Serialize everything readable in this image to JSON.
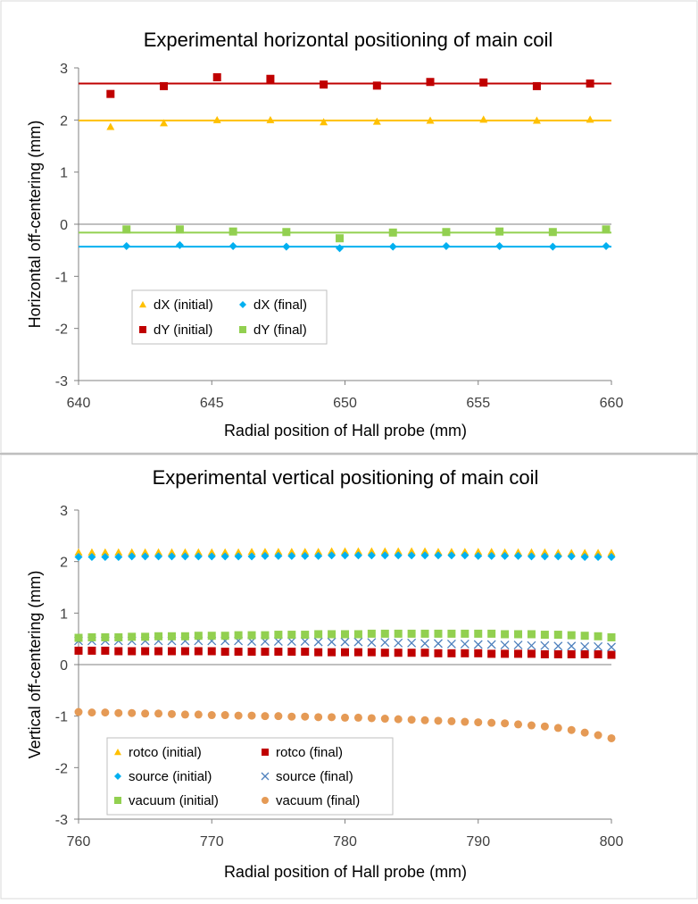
{
  "chart_data": [
    {
      "type": "scatter",
      "title": "Experimental horizontal positioning of main coil",
      "xlabel": "Radial position of Hall probe (mm)",
      "ylabel": "Horizontal off-centering (mm)",
      "xlim": [
        640,
        660
      ],
      "ylim": [
        -3,
        3
      ],
      "xticks": [
        640,
        645,
        650,
        655,
        660
      ],
      "yticks": [
        3,
        2,
        1,
        0,
        -1,
        -2,
        -3
      ],
      "legend_position": "bottom-left",
      "series": [
        {
          "name": "dX (initial)",
          "marker": "triangle",
          "color": "#ffc000",
          "x": [
            641.2,
            643.2,
            645.2,
            647.2,
            649.2,
            651.2,
            653.2,
            655.2,
            657.2,
            659.2
          ],
          "y": [
            1.87,
            1.94,
            2.0,
            2.0,
            1.96,
            1.97,
            1.99,
            2.01,
            1.99,
            2.01
          ],
          "fit": 1.99
        },
        {
          "name": "dX (final)",
          "marker": "diamond",
          "color": "#00b0f0",
          "x": [
            641.8,
            643.8,
            645.8,
            647.8,
            649.8,
            651.8,
            653.8,
            655.8,
            657.8,
            659.8
          ],
          "y": [
            -0.42,
            -0.4,
            -0.42,
            -0.43,
            -0.46,
            -0.43,
            -0.42,
            -0.42,
            -0.43,
            -0.42
          ],
          "fit": -0.43
        },
        {
          "name": "dY (initial)",
          "marker": "square",
          "color": "#c00000",
          "x": [
            641.2,
            643.2,
            645.2,
            647.2,
            649.2,
            651.2,
            653.2,
            655.2,
            657.2,
            659.2
          ],
          "y": [
            2.5,
            2.65,
            2.82,
            2.79,
            2.68,
            2.66,
            2.73,
            2.72,
            2.65,
            2.7
          ],
          "fit": 2.7
        },
        {
          "name": "dY (final)",
          "marker": "square",
          "color": "#92d050",
          "x": [
            641.8,
            643.8,
            645.8,
            647.8,
            649.8,
            651.8,
            653.8,
            655.8,
            657.8,
            659.8
          ],
          "y": [
            -0.1,
            -0.1,
            -0.14,
            -0.15,
            -0.27,
            -0.16,
            -0.15,
            -0.14,
            -0.15,
            -0.1
          ],
          "fit": -0.16
        }
      ]
    },
    {
      "type": "scatter",
      "title": "Experimental vertical positioning of main coil",
      "xlabel": "Radial position of Hall probe (mm)",
      "ylabel": "Vertical off-centering (mm)",
      "xlim": [
        760,
        800
      ],
      "ylim": [
        -3,
        3
      ],
      "xticks": [
        760,
        770,
        780,
        790,
        800
      ],
      "yticks": [
        3,
        2,
        1,
        0,
        -1,
        -2,
        -3
      ],
      "legend_position": "bottom-left",
      "series": [
        {
          "name": "rotco (initial)",
          "marker": "triangle",
          "color": "#ffc000",
          "x": [
            760,
            761,
            762,
            763,
            764,
            765,
            766,
            767,
            768,
            769,
            770,
            771,
            772,
            773,
            774,
            775,
            776,
            777,
            778,
            779,
            780,
            781,
            782,
            783,
            784,
            785,
            786,
            787,
            788,
            789,
            790,
            791,
            792,
            793,
            794,
            795,
            796,
            797,
            798,
            799,
            800
          ],
          "y": [
            2.18,
            2.18,
            2.18,
            2.18,
            2.18,
            2.18,
            2.18,
            2.18,
            2.18,
            2.18,
            2.18,
            2.18,
            2.18,
            2.19,
            2.19,
            2.19,
            2.19,
            2.19,
            2.19,
            2.2,
            2.2,
            2.2,
            2.2,
            2.2,
            2.2,
            2.2,
            2.2,
            2.19,
            2.19,
            2.19,
            2.19,
            2.19,
            2.18,
            2.18,
            2.18,
            2.18,
            2.17,
            2.17,
            2.17,
            2.17,
            2.17
          ]
        },
        {
          "name": "rotco (final)",
          "marker": "square",
          "color": "#c00000",
          "x": [
            760,
            761,
            762,
            763,
            764,
            765,
            766,
            767,
            768,
            769,
            770,
            771,
            772,
            773,
            774,
            775,
            776,
            777,
            778,
            779,
            780,
            781,
            782,
            783,
            784,
            785,
            786,
            787,
            788,
            789,
            790,
            791,
            792,
            793,
            794,
            795,
            796,
            797,
            798,
            799,
            800
          ],
          "y": [
            0.27,
            0.27,
            0.27,
            0.26,
            0.26,
            0.26,
            0.26,
            0.26,
            0.26,
            0.26,
            0.26,
            0.25,
            0.25,
            0.25,
            0.25,
            0.25,
            0.25,
            0.25,
            0.24,
            0.24,
            0.24,
            0.24,
            0.24,
            0.23,
            0.23,
            0.23,
            0.23,
            0.22,
            0.22,
            0.22,
            0.22,
            0.21,
            0.21,
            0.21,
            0.21,
            0.2,
            0.2,
            0.2,
            0.2,
            0.2,
            0.19
          ]
        },
        {
          "name": "source (initial)",
          "marker": "diamond",
          "color": "#00b0f0",
          "x": [
            760,
            761,
            762,
            763,
            764,
            765,
            766,
            767,
            768,
            769,
            770,
            771,
            772,
            773,
            774,
            775,
            776,
            777,
            778,
            779,
            780,
            781,
            782,
            783,
            784,
            785,
            786,
            787,
            788,
            789,
            790,
            791,
            792,
            793,
            794,
            795,
            796,
            797,
            798,
            799,
            800
          ],
          "y": [
            2.09,
            2.09,
            2.09,
            2.09,
            2.1,
            2.1,
            2.1,
            2.1,
            2.1,
            2.1,
            2.1,
            2.1,
            2.1,
            2.1,
            2.11,
            2.11,
            2.11,
            2.11,
            2.11,
            2.12,
            2.12,
            2.12,
            2.12,
            2.12,
            2.12,
            2.12,
            2.12,
            2.12,
            2.12,
            2.12,
            2.11,
            2.11,
            2.11,
            2.11,
            2.1,
            2.1,
            2.1,
            2.1,
            2.09,
            2.09,
            2.09
          ]
        },
        {
          "name": "source (final)",
          "marker": "x",
          "color": "#4f81bd",
          "x": [
            760,
            761,
            762,
            763,
            764,
            765,
            766,
            767,
            768,
            769,
            770,
            771,
            772,
            773,
            774,
            775,
            776,
            777,
            778,
            779,
            780,
            781,
            782,
            783,
            784,
            785,
            786,
            787,
            788,
            789,
            790,
            791,
            792,
            793,
            794,
            795,
            796,
            797,
            798,
            799,
            800
          ],
          "y": [
            0.46,
            0.46,
            0.46,
            0.46,
            0.46,
            0.46,
            0.46,
            0.46,
            0.46,
            0.46,
            0.46,
            0.46,
            0.46,
            0.45,
            0.45,
            0.45,
            0.45,
            0.45,
            0.44,
            0.44,
            0.44,
            0.44,
            0.43,
            0.43,
            0.42,
            0.42,
            0.41,
            0.41,
            0.4,
            0.4,
            0.39,
            0.39,
            0.38,
            0.38,
            0.37,
            0.37,
            0.36,
            0.36,
            0.35,
            0.35,
            0.34
          ]
        },
        {
          "name": "vacuum (initial)",
          "marker": "square",
          "color": "#92d050",
          "x": [
            760,
            761,
            762,
            763,
            764,
            765,
            766,
            767,
            768,
            769,
            770,
            771,
            772,
            773,
            774,
            775,
            776,
            777,
            778,
            779,
            780,
            781,
            782,
            783,
            784,
            785,
            786,
            787,
            788,
            789,
            790,
            791,
            792,
            793,
            794,
            795,
            796,
            797,
            798,
            799,
            800
          ],
          "y": [
            0.52,
            0.53,
            0.53,
            0.53,
            0.54,
            0.54,
            0.55,
            0.55,
            0.55,
            0.56,
            0.56,
            0.56,
            0.57,
            0.57,
            0.57,
            0.58,
            0.58,
            0.58,
            0.59,
            0.59,
            0.59,
            0.59,
            0.6,
            0.6,
            0.6,
            0.6,
            0.6,
            0.6,
            0.6,
            0.6,
            0.6,
            0.6,
            0.59,
            0.59,
            0.59,
            0.58,
            0.58,
            0.57,
            0.56,
            0.55,
            0.53
          ]
        },
        {
          "name": "vacuum (final)",
          "marker": "circle",
          "color": "#e59a55",
          "x": [
            760,
            761,
            762,
            763,
            764,
            765,
            766,
            767,
            768,
            769,
            770,
            771,
            772,
            773,
            774,
            775,
            776,
            777,
            778,
            779,
            780,
            781,
            782,
            783,
            784,
            785,
            786,
            787,
            788,
            789,
            790,
            791,
            792,
            793,
            794,
            795,
            796,
            797,
            798,
            799,
            800
          ],
          "y": [
            -0.92,
            -0.93,
            -0.93,
            -0.94,
            -0.94,
            -0.95,
            -0.95,
            -0.96,
            -0.97,
            -0.97,
            -0.98,
            -0.98,
            -0.99,
            -0.99,
            -1.0,
            -1.0,
            -1.01,
            -1.01,
            -1.02,
            -1.02,
            -1.03,
            -1.03,
            -1.04,
            -1.05,
            -1.06,
            -1.07,
            -1.08,
            -1.09,
            -1.1,
            -1.11,
            -1.12,
            -1.13,
            -1.14,
            -1.16,
            -1.18,
            -1.2,
            -1.23,
            -1.27,
            -1.32,
            -1.37,
            -1.43
          ]
        }
      ]
    }
  ]
}
